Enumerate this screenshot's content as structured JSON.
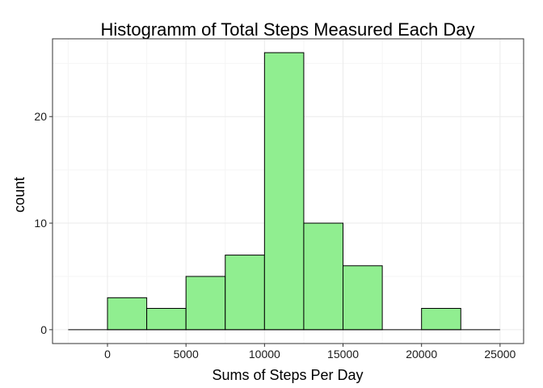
{
  "chart_data": {
    "type": "bar",
    "title": "Histogramm of Total Steps Measured Each Day",
    "xlabel": "Sums of Steps Per Day",
    "ylabel": "count",
    "bins": [
      {
        "x0": -2500,
        "x1": 0,
        "count": 0
      },
      {
        "x0": 0,
        "x1": 2500,
        "count": 3
      },
      {
        "x0": 2500,
        "x1": 5000,
        "count": 2
      },
      {
        "x0": 5000,
        "x1": 7500,
        "count": 5
      },
      {
        "x0": 7500,
        "x1": 10000,
        "count": 7
      },
      {
        "x0": 10000,
        "x1": 12500,
        "count": 26
      },
      {
        "x0": 12500,
        "x1": 15000,
        "count": 10
      },
      {
        "x0": 15000,
        "x1": 17500,
        "count": 6
      },
      {
        "x0": 17500,
        "x1": 20000,
        "count": 0
      },
      {
        "x0": 20000,
        "x1": 22500,
        "count": 2
      },
      {
        "x0": 22500,
        "x1": 25000,
        "count": 0
      }
    ],
    "xlim": [
      -3500,
      26500
    ],
    "ylim": [
      -1.3,
      27.3
    ],
    "xticks": [
      0,
      5000,
      10000,
      15000,
      20000,
      25000
    ],
    "xtick_labels": [
      "0",
      "5000",
      "10000",
      "15000",
      "20000",
      "25000"
    ],
    "yticks": [
      0,
      10,
      20
    ],
    "ytick_labels": [
      "0",
      "10",
      "20"
    ],
    "grid": true,
    "legend": "none",
    "colors": {
      "bar_fill": "#90ee90",
      "bar_stroke": "#000000",
      "panel_border": "#333333",
      "grid_major": "#ebebeb",
      "grid_minor": "#f5f5f5"
    }
  }
}
